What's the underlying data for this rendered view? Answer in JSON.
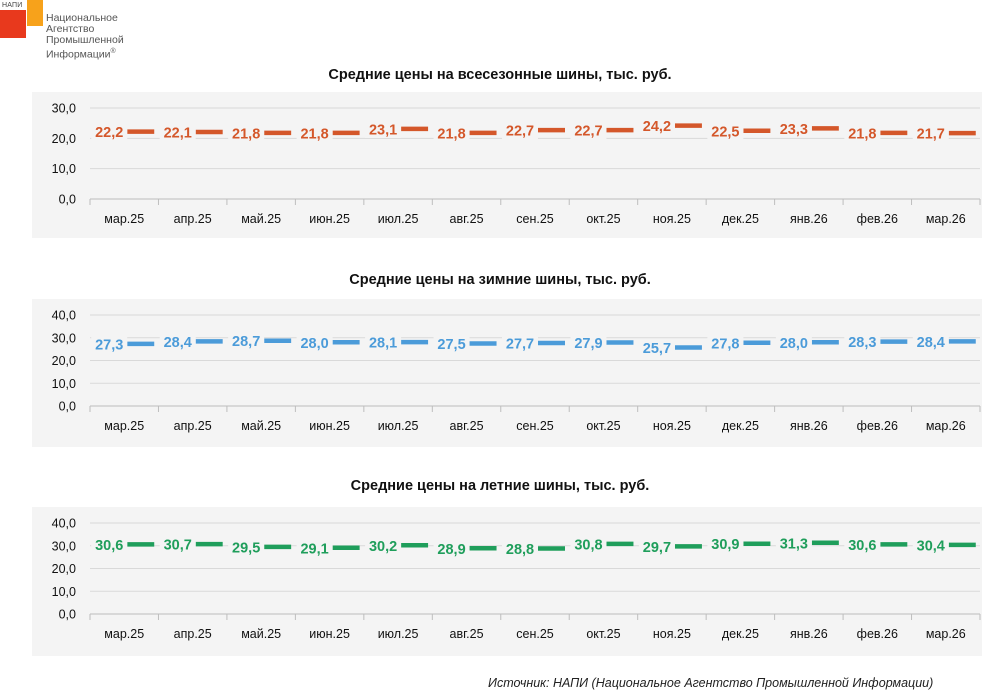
{
  "logo": {
    "abbr": "НАПИ",
    "lines": [
      "Национальное",
      "Агентство",
      "Промышленной",
      "Информации"
    ],
    "mark": "®",
    "colors": {
      "red": "#e8391d",
      "orange": "#f7a21b"
    }
  },
  "source": "Источник: НАПИ (Национальное Агентство Промышленной Информации)",
  "chart_data": [
    {
      "type": "line",
      "title": "Средние цены на всесезонные шины, тыс. руб.",
      "categories": [
        "мар.25",
        "апр.25",
        "май.25",
        "июн.25",
        "июл.25",
        "авг.25",
        "сен.25",
        "окт.25",
        "ноя.25",
        "дек.25",
        "янв.26",
        "фев.26",
        "мар.26"
      ],
      "series": [
        {
          "values": [
            22.2,
            22.1,
            21.8,
            21.8,
            23.1,
            21.8,
            22.7,
            22.7,
            24.2,
            22.5,
            23.3,
            21.8,
            21.7
          ]
        }
      ],
      "value_labels": [
        "22,2",
        "22,1",
        "21,8",
        "21,8",
        "23,1",
        "21,8",
        "22,7",
        "22,7",
        "24,2",
        "22,5",
        "23,3",
        "21,8",
        "21,7"
      ],
      "ylim": [
        0,
        30
      ],
      "yticks": [
        "0,0",
        "10,0",
        "20,0",
        "30,0"
      ],
      "color": "#d4572a",
      "grid": true
    },
    {
      "type": "line",
      "title": "Средние цены на зимние шины, тыс. руб.",
      "categories": [
        "мар.25",
        "апр.25",
        "май.25",
        "июн.25",
        "июл.25",
        "авг.25",
        "сен.25",
        "окт.25",
        "ноя.25",
        "дек.25",
        "янв.26",
        "фев.26",
        "мар.26"
      ],
      "series": [
        {
          "values": [
            27.3,
            28.4,
            28.7,
            28.0,
            28.1,
            27.5,
            27.7,
            27.9,
            25.7,
            27.8,
            28.0,
            28.3,
            28.4
          ]
        }
      ],
      "value_labels": [
        "27,3",
        "28,4",
        "28,7",
        "28,0",
        "28,1",
        "27,5",
        "27,7",
        "27,9",
        "25,7",
        "27,8",
        "28,0",
        "28,3",
        "28,4"
      ],
      "ylim": [
        0,
        40
      ],
      "yticks": [
        "0,0",
        "10,0",
        "20,0",
        "30,0",
        "40,0"
      ],
      "color": "#4b9bd9",
      "grid": true
    },
    {
      "type": "line",
      "title": "Средние цены на летние шины, тыс. руб.",
      "categories": [
        "мар.25",
        "апр.25",
        "май.25",
        "июн.25",
        "июл.25",
        "авг.25",
        "сен.25",
        "окт.25",
        "ноя.25",
        "дек.25",
        "янв.26",
        "фев.26",
        "мар.26"
      ],
      "series": [
        {
          "values": [
            30.6,
            30.7,
            29.5,
            29.1,
            30.2,
            28.9,
            28.8,
            30.8,
            29.7,
            30.9,
            31.3,
            30.6,
            30.4
          ]
        }
      ],
      "value_labels": [
        "30,6",
        "30,7",
        "29,5",
        "29,1",
        "30,2",
        "28,9",
        "28,8",
        "30,8",
        "29,7",
        "30,9",
        "31,3",
        "30,6",
        "30,4"
      ],
      "ylim": [
        0,
        40
      ],
      "yticks": [
        "0,0",
        "10,0",
        "20,0",
        "30,0",
        "40,0"
      ],
      "color": "#1f9e5b",
      "grid": true
    }
  ]
}
